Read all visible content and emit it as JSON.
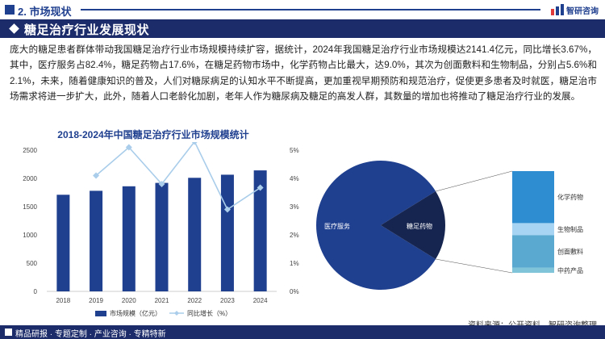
{
  "header": {
    "section_title": "2. 市场现状",
    "logo_text": "智研咨询"
  },
  "banner": {
    "title": "糖足治疗行业发展现状"
  },
  "paragraph": "庞大的糖足患者群体带动我国糖足治疗行业市场规模持续扩容，据统计，2024年我国糖足治疗行业市场规模达2141.4亿元，同比增长3.67%，其中，医疗服务占82.4%，糖足药物占17.6%，在糖足药物市场中，化学药物占比最大，达9.0%，其次为创面敷料和生物制品，分别占5.6%和2.1%，未来，随着健康知识的普及，人们对糖尿病足的认知水平不断提高，更加重视早期预防和规范治疗，促使更多患者及时就医，糖足治市场需求将进一步扩大，此外，随着人口老龄化加剧，老年人作为糖尿病及糖足的高发人群，其数量的增加也将推动了糖足治疗行业的发展。",
  "footer": {
    "left_text": "精品研报 · 专题定制 · 产业咨询 · 专精特新",
    "source": "资料来源：公开资料、智研咨询整理"
  },
  "colors": {
    "navy": "#1c2c6b",
    "bar": "#1f3f8f",
    "line": "#a9cdea",
    "pie_med": "#1f3f8f",
    "pie_drug": "#16254f",
    "chem": "#2e8dd0",
    "bio": "#a7d4f2",
    "dressing": "#5aa9d1",
    "tcm": "#7fc4d9"
  },
  "chart_data": [
    {
      "type": "bar",
      "title": "2018-2024年中国糖足治疗行业市场规模统计",
      "categories": [
        "2018",
        "2019",
        "2020",
        "2021",
        "2022",
        "2023",
        "2024"
      ],
      "series": [
        {
          "name": "市场规模（亿元）",
          "type": "bar",
          "axis": "left",
          "values": [
            1710,
            1780,
            1860,
            1920,
            2010,
            2065,
            2141.4
          ]
        },
        {
          "name": "同比增长（%）",
          "type": "line",
          "axis": "right",
          "values": [
            null,
            4.1,
            5.1,
            3.8,
            5.3,
            2.9,
            3.67
          ]
        }
      ],
      "left_axis": {
        "ylim": [
          0,
          2500
        ],
        "ticks": [
          "0",
          "500",
          "1000",
          "1500",
          "2000",
          "2500"
        ]
      },
      "right_axis": {
        "ylim": [
          0,
          5
        ],
        "ticks": [
          "0%",
          "1%",
          "2%",
          "3%",
          "4%",
          "5%"
        ]
      },
      "legend": "bottom"
    },
    {
      "type": "pie",
      "slices": [
        {
          "label": "医疗服务",
          "value": 82.4
        },
        {
          "label": "糖足药物",
          "value": 17.6
        }
      ],
      "breakdown": {
        "of": "糖足药物",
        "segments": [
          {
            "label": "化学药物",
            "value": 9.0
          },
          {
            "label": "生物制品",
            "value": 2.1
          },
          {
            "label": "创面敷料",
            "value": 5.6
          },
          {
            "label": "中药产品",
            "value": 0.9
          }
        ]
      }
    }
  ]
}
